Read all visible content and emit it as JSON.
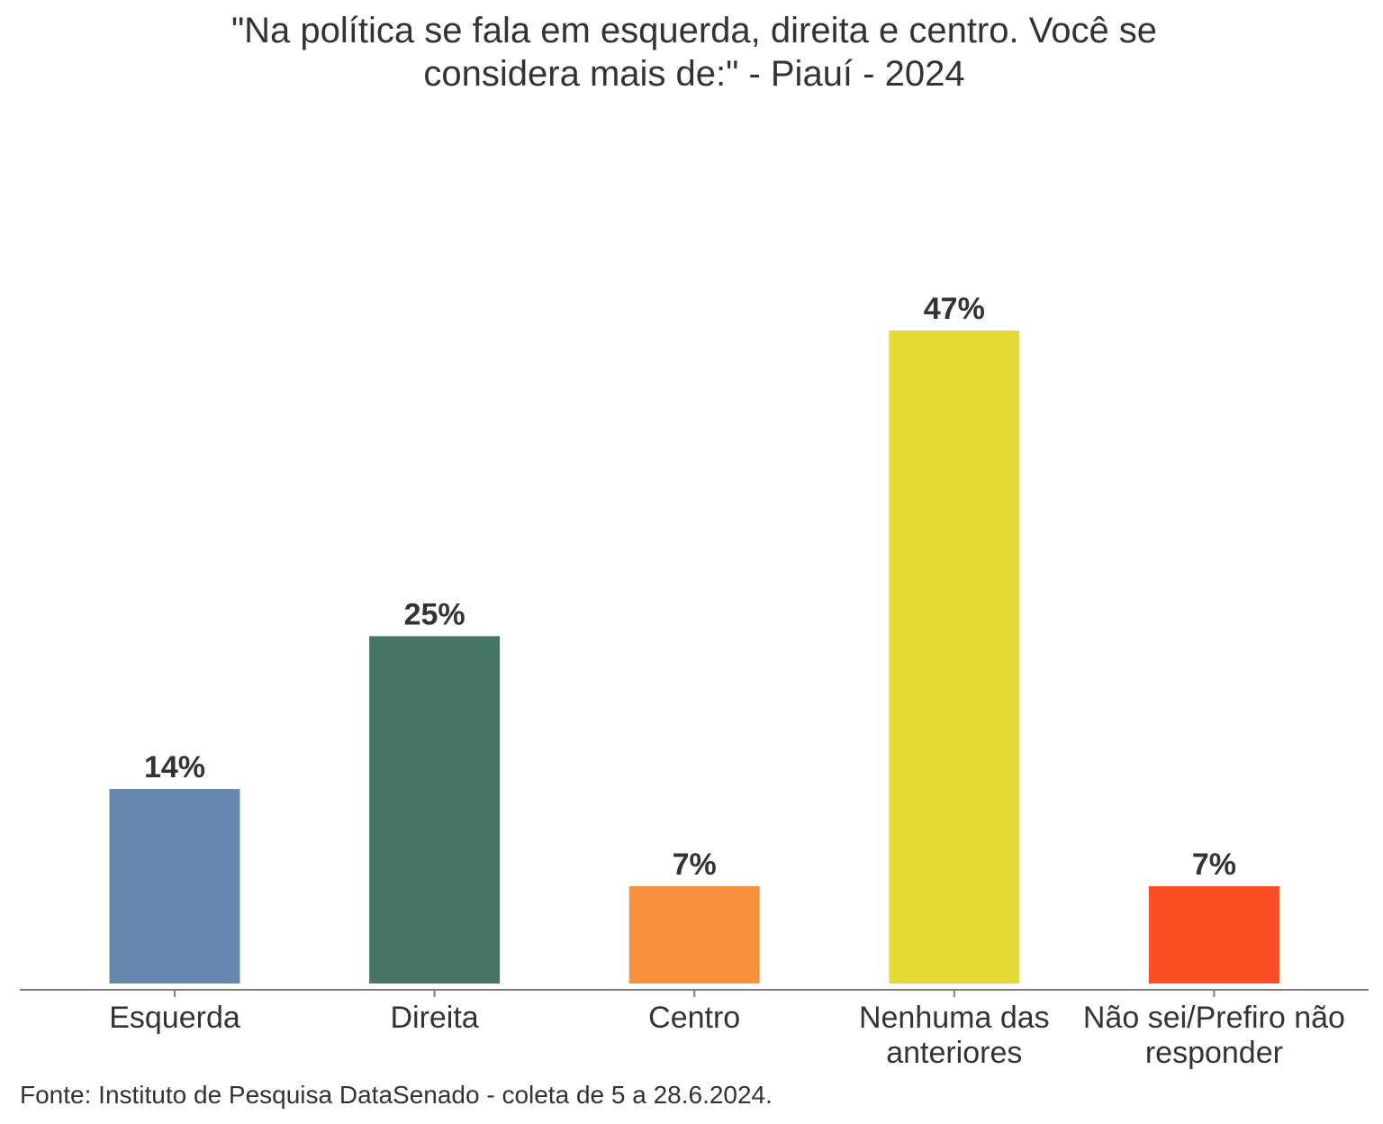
{
  "chart_data": {
    "type": "bar",
    "title_lines": [
      "\"Na política se fala em esquerda, direita e centro. Você se",
      "considera mais de:\" - Piauí - 2024"
    ],
    "categories": [
      [
        "Esquerda"
      ],
      [
        "Direita"
      ],
      [
        "Centro"
      ],
      [
        "Nenhuma das",
        "anteriores"
      ],
      [
        "Não sei/Prefiro não",
        "responder"
      ]
    ],
    "values": [
      14,
      25,
      7,
      47,
      7
    ],
    "value_labels": [
      "14%",
      "25%",
      "7%",
      "47%",
      "7%"
    ],
    "colors": [
      "#6688ae",
      "#467564",
      "#f9913c",
      "#e5d935",
      "#fc4c24"
    ],
    "ylim": [
      0,
      47
    ],
    "xlabel": "",
    "ylabel": "",
    "grid": false,
    "legend": "none",
    "source": "Fonte: Instituto de Pesquisa DataSenado - coleta de 5 a 28.6.2024."
  }
}
